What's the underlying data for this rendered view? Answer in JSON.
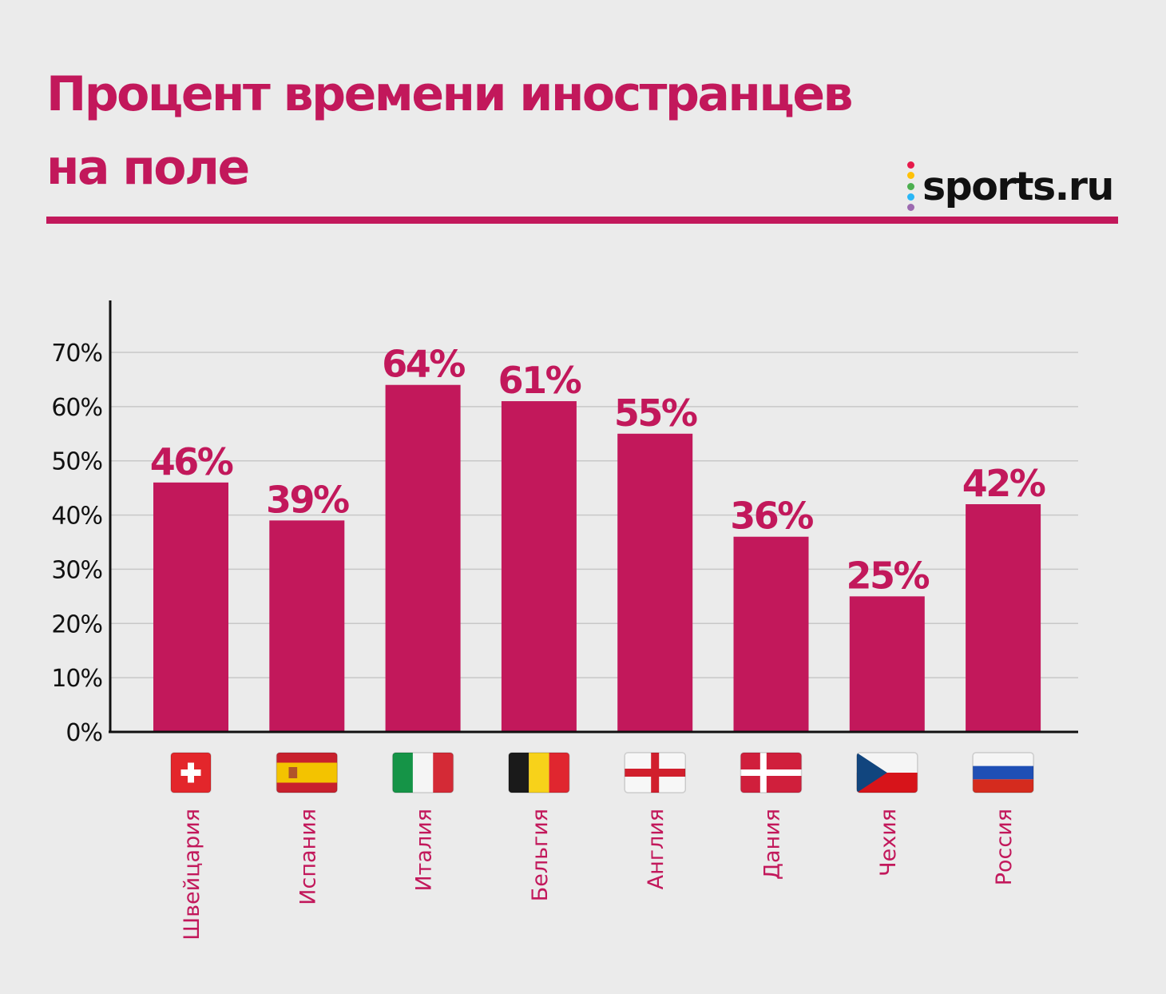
{
  "title_lines": [
    "Процент времени иностранцев",
    "на поле"
  ],
  "brand": {
    "text": "sports.ru",
    "dot_colors": [
      "#e6194b",
      "#ffc107",
      "#4caf50",
      "#29b6f6",
      "#9c6ab0"
    ]
  },
  "colors": {
    "accent": "#c2185b",
    "grid": "#c8c8c8",
    "axis": "#111111"
  },
  "chart_data": {
    "type": "bar",
    "categories": [
      "Швейцария",
      "Испания",
      "Италия",
      "Бельгия",
      "Англия",
      "Дания",
      "Чехия",
      "Россия"
    ],
    "values": [
      46,
      39,
      64,
      61,
      55,
      36,
      25,
      42
    ],
    "value_labels": [
      "46%",
      "39%",
      "64%",
      "61%",
      "55%",
      "36%",
      "25%",
      "42%"
    ],
    "category_icons": [
      "flag-switzerland-icon",
      "flag-spain-icon",
      "flag-italy-icon",
      "flag-belgium-icon",
      "flag-england-icon",
      "flag-denmark-icon",
      "flag-czechia-icon",
      "flag-russia-icon"
    ],
    "yticks": [
      "0%",
      "10%",
      "20%",
      "30%",
      "40%",
      "50%",
      "60%",
      "70%"
    ],
    "ylim": [
      0,
      70
    ],
    "grid": true,
    "title": "Процент времени иностранцев на поле",
    "xlabel": "",
    "ylabel": ""
  }
}
